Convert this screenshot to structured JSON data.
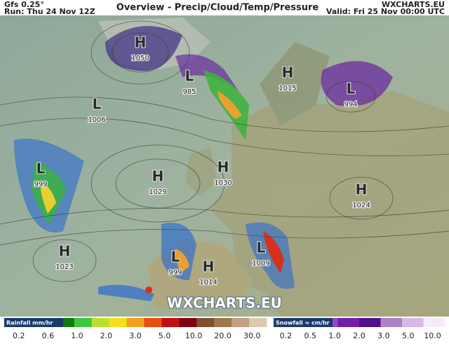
{
  "header": {
    "model": "Gfs 0.25°",
    "run": "Run: Thu 24 Nov 12Z",
    "title": "Overview - Precip/Cloud/Temp/Pressure",
    "site": "WXCHARTS.EU",
    "valid": "Valid: Fri 25 Nov 00:00 UTC"
  },
  "map": {
    "centers": [
      {
        "symbol": "H",
        "pressure": 1050
      },
      {
        "symbol": "L",
        "pressure": 985
      },
      {
        "symbol": "H",
        "pressure": 1015
      },
      {
        "symbol": "L",
        "pressure": 994
      },
      {
        "symbol": "L",
        "pressure": 1006
      },
      {
        "symbol": "L",
        "pressure": 999
      },
      {
        "symbol": "H",
        "pressure": 1029
      },
      {
        "symbol": "H",
        "pressure": 1030
      },
      {
        "symbol": "H",
        "pressure": 1024
      },
      {
        "symbol": "H",
        "pressure": 1023
      },
      {
        "symbol": "L",
        "pressure": 999
      },
      {
        "symbol": "H",
        "pressure": 1014
      },
      {
        "symbol": "L",
        "pressure": 1009
      }
    ],
    "watermark": "WXCHARTS.EU"
  },
  "legend": {
    "rainfall": {
      "title": "Rainfall mm/hr",
      "labels": [
        "0.2",
        "0.6",
        "1.0",
        "2.0",
        "3.0",
        "5.0",
        "10.0",
        "20.0",
        "30.0"
      ]
    },
    "snowfall": {
      "title": "Snowfall ≈ cm/hr",
      "labels": [
        "0.2",
        "0.5",
        "1.0",
        "2.0",
        "3.0",
        "5.0",
        "10.0"
      ]
    }
  }
}
